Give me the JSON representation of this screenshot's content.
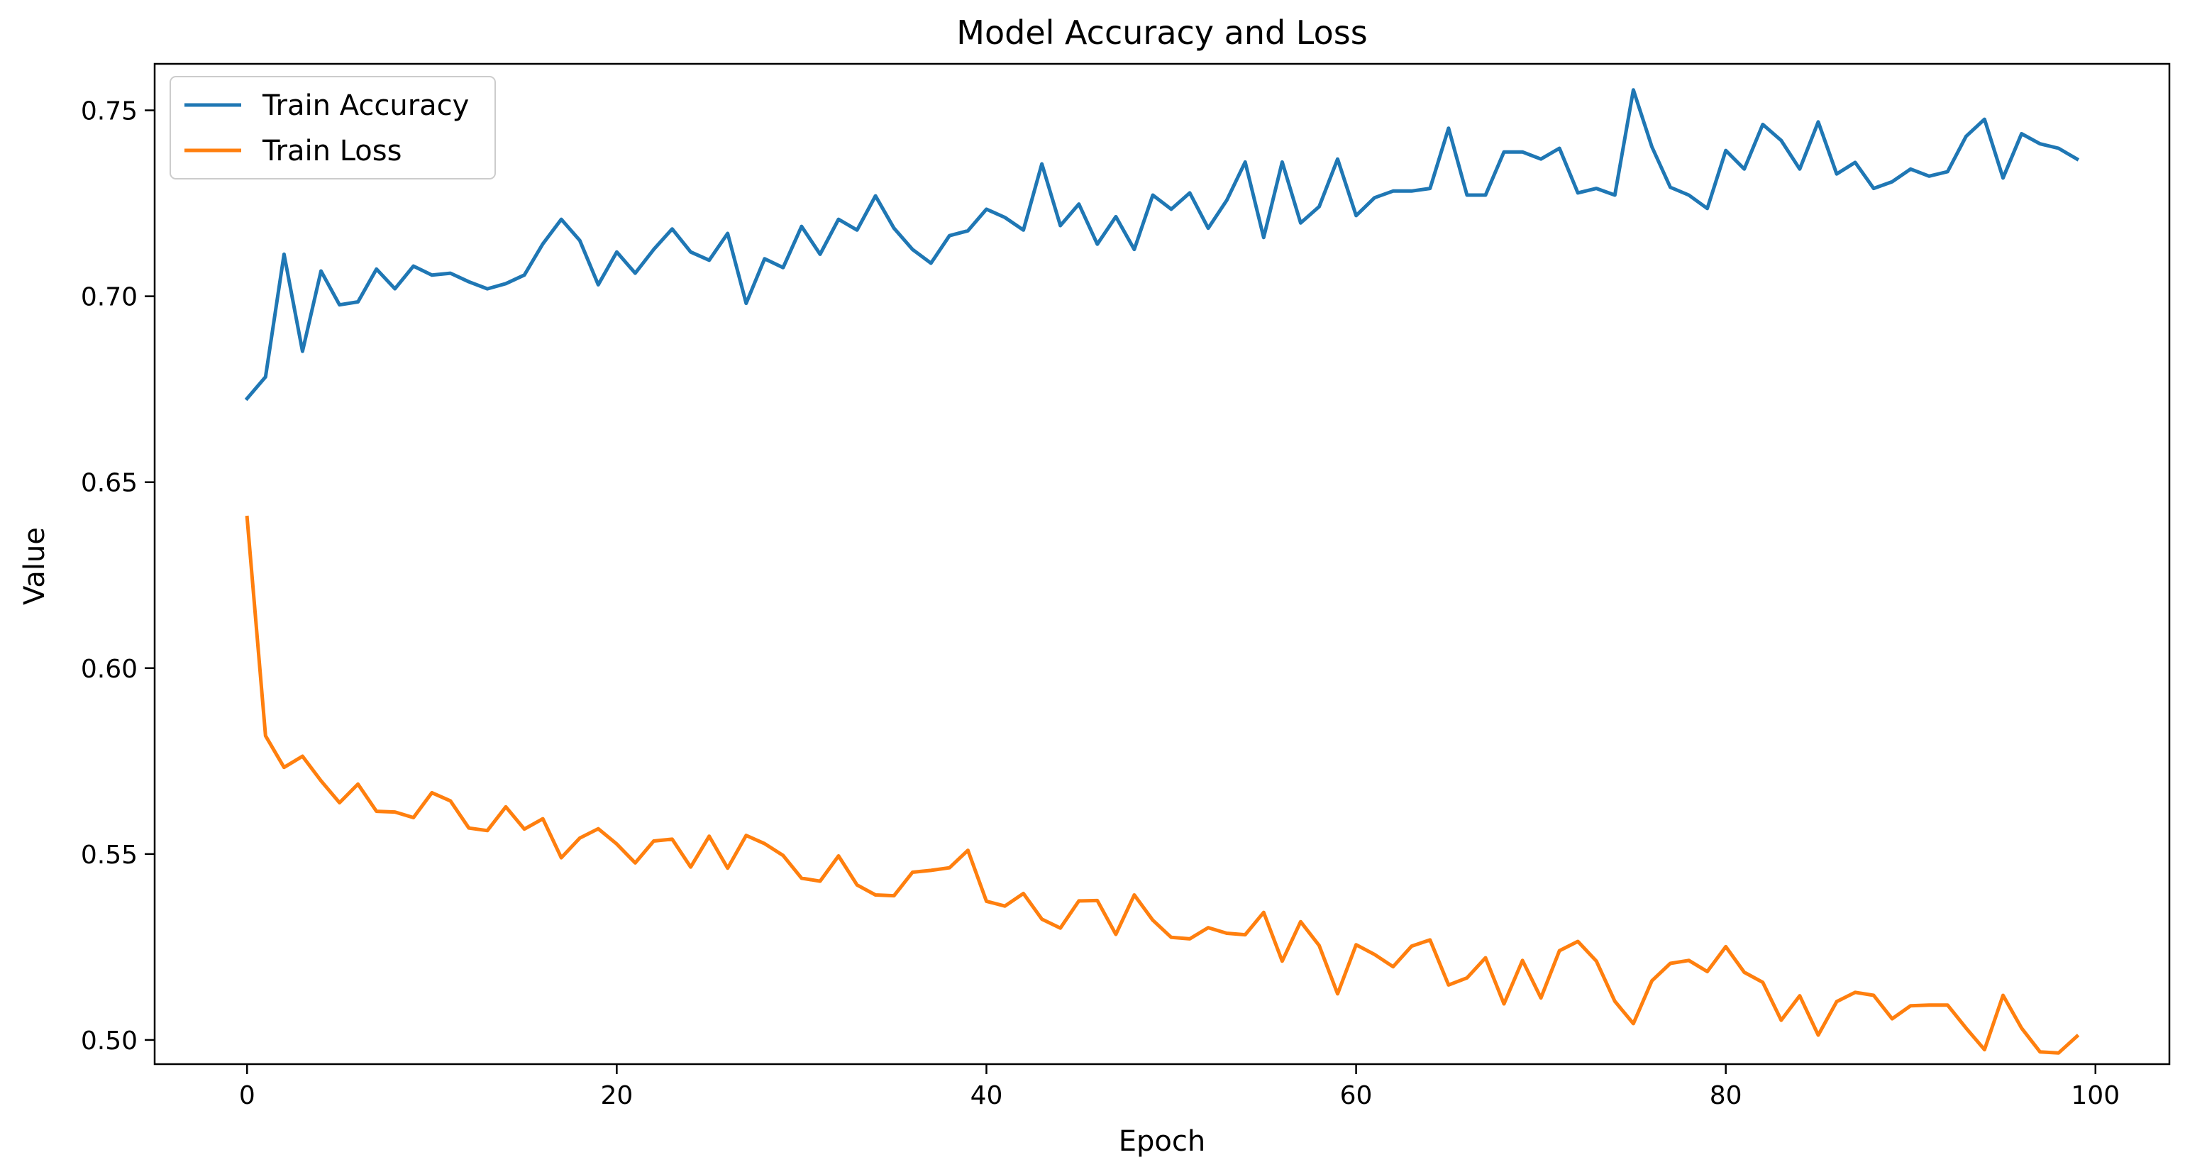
{
  "chart_data": {
    "type": "line",
    "title": "Model Accuracy and Loss",
    "xlabel": "Epoch",
    "ylabel": "Value",
    "xlim": [
      -5,
      104
    ],
    "ylim": [
      0.4935,
      0.7625
    ],
    "xticks": [
      0,
      20,
      40,
      60,
      80,
      100
    ],
    "yticks": [
      0.5,
      0.55,
      0.6,
      0.65,
      0.7,
      0.75
    ],
    "ytick_labels": [
      "0.50",
      "0.55",
      "0.60",
      "0.65",
      "0.70",
      "0.75"
    ],
    "grid": false,
    "legend_position": "upper-left",
    "x": [
      0,
      1,
      2,
      3,
      4,
      5,
      6,
      7,
      8,
      9,
      10,
      11,
      12,
      13,
      14,
      15,
      16,
      17,
      18,
      19,
      20,
      21,
      22,
      23,
      24,
      25,
      26,
      27,
      28,
      29,
      30,
      31,
      32,
      33,
      34,
      35,
      36,
      37,
      38,
      39,
      40,
      41,
      42,
      43,
      44,
      45,
      46,
      47,
      48,
      49,
      50,
      51,
      52,
      53,
      54,
      55,
      56,
      57,
      58,
      59,
      60,
      61,
      62,
      63,
      64,
      65,
      66,
      67,
      68,
      69,
      70,
      71,
      72,
      73,
      74,
      75,
      76,
      77,
      78,
      79,
      80,
      81,
      82,
      83,
      84,
      85,
      86,
      87,
      88,
      89,
      90,
      91,
      92,
      93,
      94,
      95,
      96,
      97,
      98,
      99
    ],
    "series": [
      {
        "name": "Train Accuracy",
        "color": "#1f77b4",
        "values": [
          0.6725,
          0.6783,
          0.7113,
          0.6852,
          0.7068,
          0.6977,
          0.6985,
          0.7073,
          0.702,
          0.7081,
          0.7057,
          0.7062,
          0.7039,
          0.702,
          0.7034,
          0.7057,
          0.7141,
          0.7207,
          0.715,
          0.7031,
          0.7119,
          0.7062,
          0.7126,
          0.7181,
          0.7119,
          0.7097,
          0.7169,
          0.6981,
          0.7101,
          0.7077,
          0.7188,
          0.7113,
          0.7207,
          0.7178,
          0.727,
          0.7183,
          0.7126,
          0.7089,
          0.7163,
          0.7176,
          0.7234,
          0.7212,
          0.7178,
          0.7356,
          0.719,
          0.7248,
          0.714,
          0.7214,
          0.7126,
          0.7272,
          0.7234,
          0.7278,
          0.7183,
          0.7258,
          0.7361,
          0.7158,
          0.7361,
          0.7197,
          0.7241,
          0.7369,
          0.7217,
          0.7265,
          0.7283,
          0.7283,
          0.729,
          0.7452,
          0.7272,
          0.7272,
          0.7388,
          0.7388,
          0.7369,
          0.7398,
          0.7278,
          0.729,
          0.7272,
          0.7555,
          0.7402,
          0.7293,
          0.7272,
          0.7236,
          0.7392,
          0.7342,
          0.7462,
          0.7419,
          0.7342,
          0.7469,
          0.7329,
          0.736,
          0.729,
          0.7308,
          0.7342,
          0.7323,
          0.7335,
          0.743,
          0.7476,
          0.7318,
          0.7437,
          0.741,
          0.7398,
          0.7369
        ]
      },
      {
        "name": "Train Loss",
        "color": "#ff7f0e",
        "values": [
          0.6405,
          0.5818,
          0.5733,
          0.5763,
          0.5697,
          0.5638,
          0.5688,
          0.5615,
          0.5613,
          0.5598,
          0.5665,
          0.5643,
          0.557,
          0.5563,
          0.5627,
          0.5567,
          0.5595,
          0.549,
          0.5543,
          0.5568,
          0.5527,
          0.5476,
          0.5535,
          0.554,
          0.5465,
          0.5548,
          0.5462,
          0.555,
          0.5528,
          0.5496,
          0.5435,
          0.5427,
          0.5495,
          0.5417,
          0.539,
          0.5388,
          0.5451,
          0.5456,
          0.5463,
          0.551,
          0.5373,
          0.536,
          0.5394,
          0.5325,
          0.5301,
          0.5374,
          0.5375,
          0.5284,
          0.539,
          0.5322,
          0.5276,
          0.5272,
          0.5302,
          0.5287,
          0.5283,
          0.5343,
          0.5212,
          0.5318,
          0.5254,
          0.5124,
          0.5256,
          0.523,
          0.5197,
          0.5252,
          0.5269,
          0.5148,
          0.5167,
          0.5221,
          0.5097,
          0.5214,
          0.5113,
          0.524,
          0.5265,
          0.5212,
          0.5104,
          0.5044,
          0.5159,
          0.5206,
          0.5214,
          0.5184,
          0.5251,
          0.5182,
          0.5155,
          0.5053,
          0.5119,
          0.5013,
          0.5103,
          0.5128,
          0.512,
          0.5057,
          0.5092,
          0.5094,
          0.5094,
          0.5032,
          0.4974,
          0.512,
          0.5032,
          0.4968,
          0.4965,
          0.501
        ]
      }
    ]
  }
}
